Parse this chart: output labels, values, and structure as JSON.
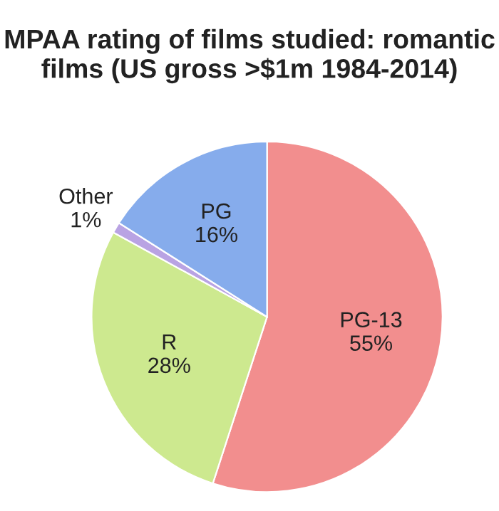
{
  "chart_data": {
    "type": "pie",
    "title": "MPAA rating of films studied: romantic films (US gross >$1m 1984-2014)",
    "categories": [
      "PG-13",
      "R",
      "Other",
      "PG"
    ],
    "values": [
      55,
      28,
      1,
      16
    ],
    "value_labels": [
      "55%",
      "28%",
      "1%",
      "16%"
    ],
    "colors": [
      "#f28e8e",
      "#cde98f",
      "#b9a3e3",
      "#86acec"
    ]
  }
}
